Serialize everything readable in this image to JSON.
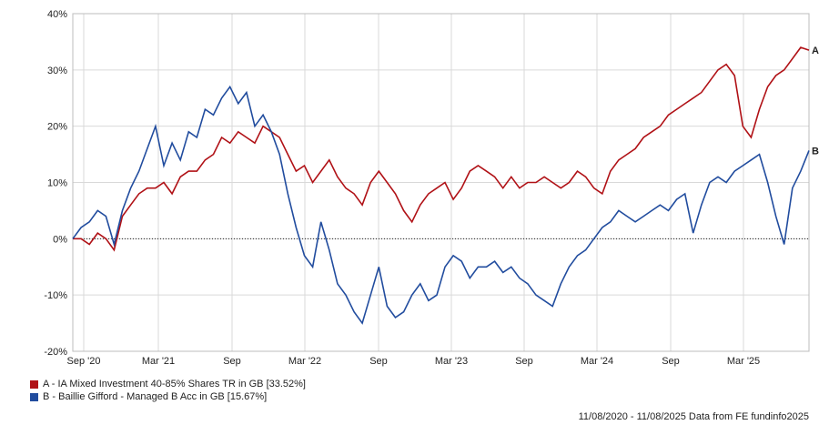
{
  "chart_data": {
    "type": "line",
    "y_ticks": [
      "40%",
      "30%",
      "20%",
      "10%",
      "0%",
      "-10%",
      "-20%"
    ],
    "x_ticks": [
      "Sep '20",
      "Mar '21",
      "Sep",
      "Mar '22",
      "Sep",
      "Mar '23",
      "Sep",
      "Mar '24",
      "Sep",
      "Mar '25"
    ],
    "ylim": [
      -20,
      40
    ],
    "y_unit": "%",
    "grid": true,
    "zero_line": true,
    "series": [
      {
        "name": "A - IA Mixed Investment 40-85% Shares TR in GB [33.52%]",
        "end_label": "A",
        "color": "#b01116",
        "values": [
          0,
          0,
          -1,
          1,
          0,
          -2,
          4,
          6,
          8,
          9,
          9,
          10,
          8,
          11,
          12,
          12,
          14,
          15,
          18,
          17,
          19,
          18,
          17,
          20,
          19,
          18,
          15,
          12,
          13,
          10,
          12,
          14,
          11,
          9,
          8,
          6,
          10,
          12,
          10,
          8,
          5,
          3,
          6,
          8,
          9,
          10,
          7,
          9,
          12,
          13,
          12,
          11,
          9,
          11,
          9,
          10,
          10,
          11,
          10,
          9,
          10,
          12,
          11,
          9,
          8,
          12,
          14,
          15,
          16,
          18,
          19,
          20,
          22,
          23,
          24,
          25,
          26,
          28,
          30,
          31,
          29,
          20,
          18,
          23,
          27,
          29,
          30,
          32,
          34,
          33.52
        ]
      },
      {
        "name": "B - Baillie Gifford - Managed B Acc in GB [15.67%]",
        "end_label": "B",
        "color": "#214c9e",
        "values": [
          0,
          2,
          3,
          5,
          4,
          -1,
          5,
          9,
          12,
          16,
          20,
          13,
          17,
          14,
          19,
          18,
          23,
          22,
          25,
          27,
          24,
          26,
          20,
          22,
          19,
          15,
          8,
          2,
          -3,
          -5,
          3,
          -2,
          -8,
          -10,
          -13,
          -15,
          -10,
          -5,
          -12,
          -14,
          -13,
          -10,
          -8,
          -11,
          -10,
          -5,
          -3,
          -4,
          -7,
          -5,
          -5,
          -4,
          -6,
          -5,
          -7,
          -8,
          -10,
          -11,
          -12,
          -8,
          -5,
          -3,
          -2,
          0,
          2,
          3,
          5,
          4,
          3,
          4,
          5,
          6,
          5,
          7,
          8,
          1,
          6,
          10,
          11,
          10,
          12,
          13,
          14,
          15,
          10,
          4,
          -1,
          9,
          12,
          15.67
        ]
      }
    ]
  },
  "legend": {
    "a_label": "A - IA Mixed Investment 40-85% Shares TR in GB [33.52%]",
    "b_label": "B - Baillie Gifford - Managed B Acc in GB [15.67%]"
  },
  "footer_text": "11/08/2020 - 11/08/2025 Data from FE fundinfo2025"
}
